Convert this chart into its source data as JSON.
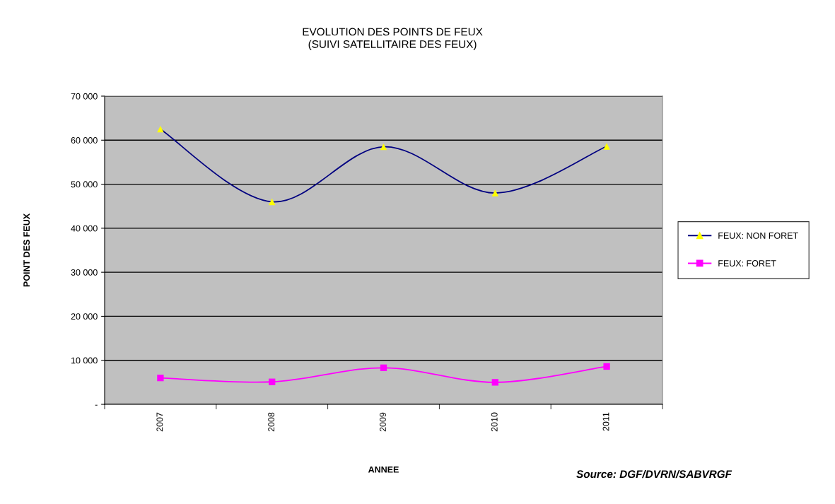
{
  "chart_data": {
    "type": "line",
    "title": "EVOLUTION DES POINTS DE FEUX\n(SUIVI SATELLITAIRE DES FEUX)",
    "xlabel": "ANNEE",
    "ylabel": "POINT DES FEUX",
    "categories": [
      "2007",
      "2008",
      "2009",
      "2010",
      "2011"
    ],
    "series": [
      {
        "name": "FEUX: NON FORET",
        "color": "#000080",
        "colors": [
          "#ffff00",
          "#ffff00",
          "#ffff00",
          "#ffff00",
          "#ffff00"
        ],
        "marker": "triangle",
        "values": [
          62500,
          46000,
          58500,
          48000,
          58600
        ]
      },
      {
        "name": "FEUX: FORET",
        "color": "#ff00ff",
        "colors": [
          "#ff00ff",
          "#ff00ff",
          "#ff00ff",
          "#ff00ff",
          "#ff00ff"
        ],
        "marker": "square",
        "values": [
          6000,
          5100,
          8300,
          5000,
          8600
        ]
      }
    ],
    "ylim": [
      0,
      70000
    ],
    "yticks": [
      {
        "value": 0,
        "label": "-"
      },
      {
        "value": 10000,
        "label": "10 000"
      },
      {
        "value": 20000,
        "label": "20 000"
      },
      {
        "value": 30000,
        "label": "30 000"
      },
      {
        "value": 40000,
        "label": "40 000"
      },
      {
        "value": 50000,
        "label": "50 000"
      },
      {
        "value": 60000,
        "label": "60 000"
      },
      {
        "value": 70000,
        "label": "70 000"
      }
    ],
    "grid": "y",
    "legend": "right",
    "line_style": "solid",
    "annotations": [
      "Source: DGF/DVRN/SABVRGF"
    ]
  }
}
